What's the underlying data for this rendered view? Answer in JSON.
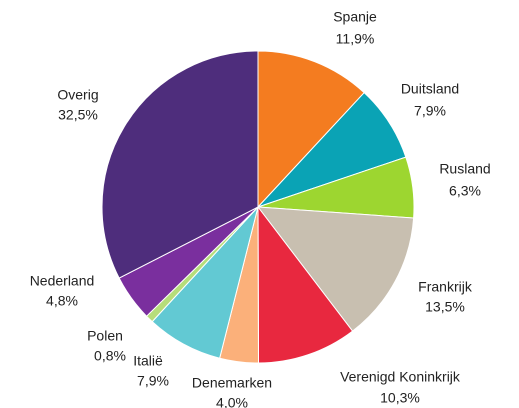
{
  "chart_data": {
    "type": "pie",
    "categories": [
      "Spanje",
      "Duitsland",
      "Rusland",
      "Frankrijk",
      "Verenigd Koninkrijk",
      "Denemarken",
      "Italië",
      "Polen",
      "Nederland",
      "Overig"
    ],
    "values": [
      11.9,
      7.9,
      6.3,
      13.5,
      10.3,
      4.0,
      7.9,
      0.8,
      4.8,
      32.5
    ],
    "value_labels": [
      "11,9%",
      "7,9%",
      "6,3%",
      "13,5%",
      "10,3%",
      "4,0%",
      "7,9%",
      "0,8%",
      "4,8%",
      "32,5%"
    ],
    "colors": [
      "#f47c20",
      "#0aa3b5",
      "#9dd630",
      "#c8bfb0",
      "#e8283f",
      "#fbb07a",
      "#62c9d3",
      "#b6dd7a",
      "#7a2f9e",
      "#4e2d7c"
    ]
  }
}
